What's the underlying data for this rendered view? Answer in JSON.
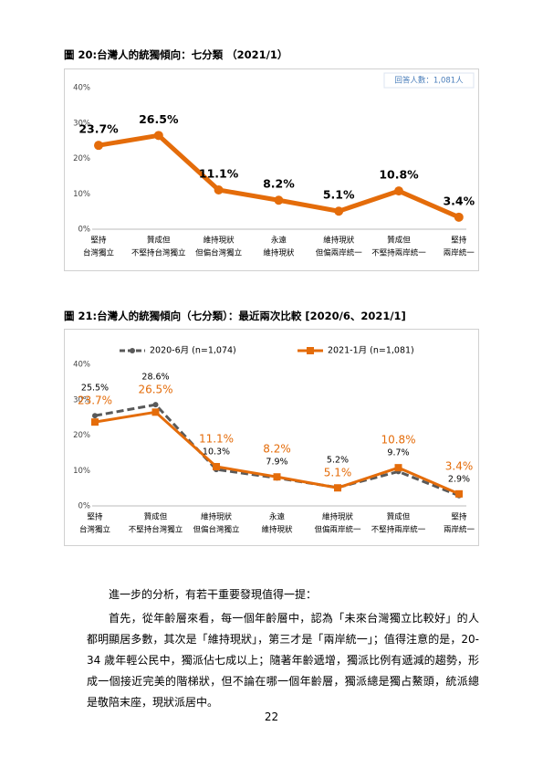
{
  "chart_data": [
    {
      "type": "line",
      "title": "圖 20:台灣人的統獨傾向：七分類 （2021/1）",
      "note": "回答人數：1,081人",
      "categories": [
        [
          "堅持",
          "台灣獨立"
        ],
        [
          "贊成但",
          "不堅持台灣獨立"
        ],
        [
          "維持現狀",
          "但偏台灣獨立"
        ],
        [
          "永遠",
          "維持現狀"
        ],
        [
          "維持現狀",
          "但偏兩岸統一"
        ],
        [
          "贊成但",
          "不堅持兩岸統一"
        ],
        [
          "堅持",
          "兩岸統一"
        ]
      ],
      "values": [
        23.7,
        26.5,
        11.1,
        8.2,
        5.1,
        10.8,
        3.4
      ],
      "value_labels": [
        "23.7%",
        "26.5%",
        "11.1%",
        "8.2%",
        "5.1%",
        "10.8%",
        "3.4%"
      ],
      "color": "#e46c0a",
      "ylim": [
        0,
        40
      ],
      "yticks": [
        {
          "value": 0,
          "label": "0%"
        },
        {
          "value": 10,
          "label": "10%"
        },
        {
          "value": 20,
          "label": "20%"
        },
        {
          "value": 30,
          "label": "30%"
        },
        {
          "value": 40,
          "label": "40%"
        }
      ],
      "grid": false
    },
    {
      "type": "line",
      "title": "圖 21:台灣人的統獨傾向（七分類）：最近兩次比較 [2020/6、2021/1]",
      "categories": [
        [
          "堅持",
          "台灣獨立"
        ],
        [
          "贊成但",
          "不堅持台灣獨立"
        ],
        [
          "維持現狀",
          "但偏台灣獨立"
        ],
        [
          "永遠",
          "維持現狀"
        ],
        [
          "維持現狀",
          "但偏兩岸統一"
        ],
        [
          "贊成但",
          "不堅持兩岸統一"
        ],
        [
          "堅持",
          "兩岸統一"
        ]
      ],
      "series": [
        {
          "name": "2020-6月 (n=1,074)",
          "color": "#595959",
          "dashed": true,
          "label_color": "#000000",
          "values": [
            25.5,
            28.6,
            10.3,
            7.9,
            5.2,
            9.7,
            2.9
          ],
          "value_labels": [
            "25.5%",
            "28.6%",
            "10.3%",
            "7.9%",
            "5.2%",
            "9.7%",
            "2.9%"
          ]
        },
        {
          "name": "2021-1月 (n=1,081)",
          "color": "#e46c0a",
          "dashed": false,
          "label_color": "#e46c0a",
          "values": [
            23.7,
            26.5,
            11.1,
            8.2,
            5.1,
            10.8,
            3.4
          ],
          "value_labels": [
            "23.7%",
            "26.5%",
            "11.1%",
            "8.2%",
            "5.1%",
            "10.8%",
            "3.4%"
          ]
        }
      ],
      "ylim": [
        0,
        40
      ],
      "yticks": [
        {
          "value": 0,
          "label": "0%"
        },
        {
          "value": 10,
          "label": "10%"
        },
        {
          "value": 20,
          "label": "20%"
        },
        {
          "value": 30,
          "label": "30%"
        },
        {
          "value": 40,
          "label": "40%"
        }
      ],
      "grid": false
    }
  ],
  "paragraphs": [
    "進一步的分析，有若干重要發現值得一提：",
    "首先，從年齡層來看，每一個年齡層中，認為「未來台灣獨立比較好」的人都明顯居多數，其次是「維持現狀」，第三才是「兩岸統一」；值得注意的是，20-34 歲年輕公民中，獨派佔七成以上；隨著年齡遞增，獨派比例有遞減的趨勢，形成一個接近完美的階梯狀，但不論在哪一個年齡層，獨派總是獨占鰲頭，統派總是敬陪末座，現狀派居中。"
  ],
  "page_number": "22"
}
